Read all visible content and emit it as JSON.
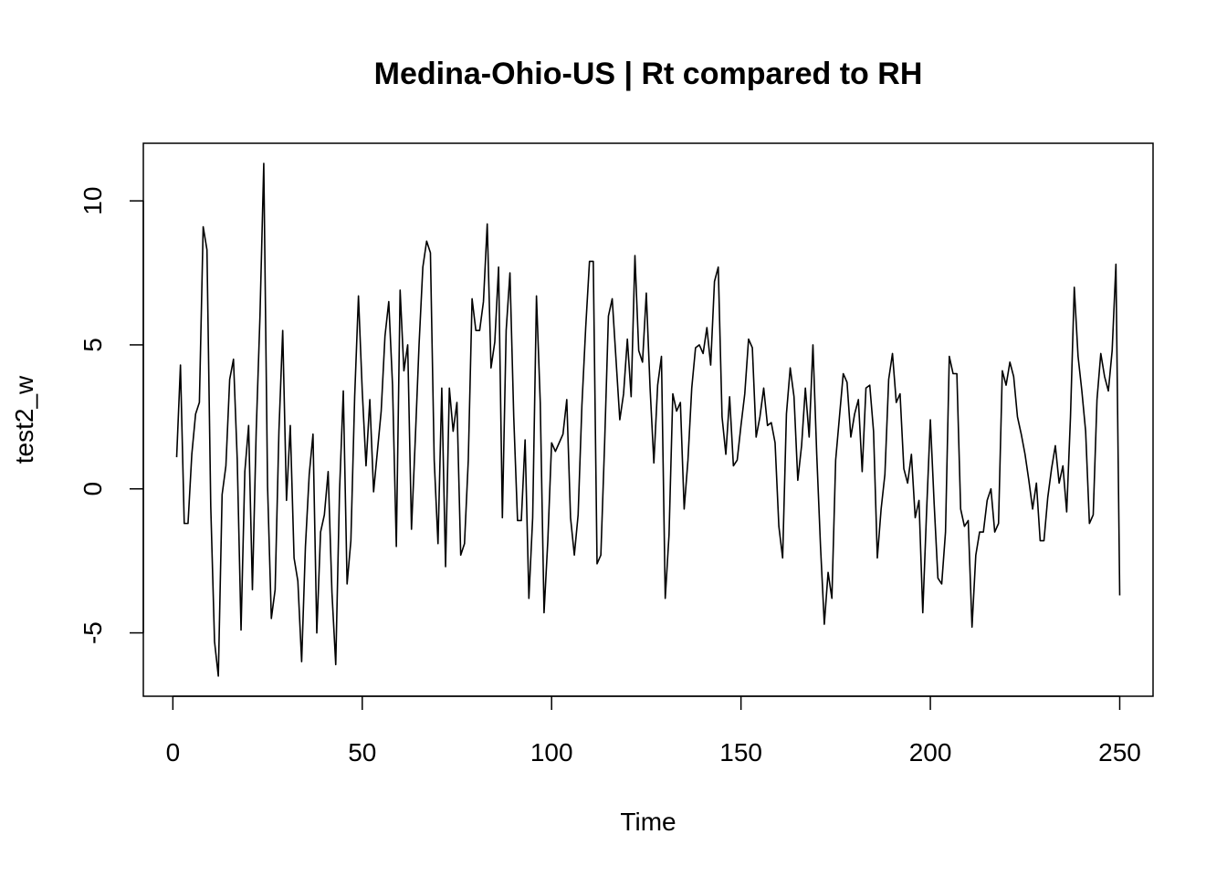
{
  "chart_data": {
    "type": "line",
    "title": "Medina-Ohio-US | Rt compared to RH",
    "xlabel": "Time",
    "ylabel": "test2_w",
    "xlim": [
      -7.8,
      258.8
    ],
    "ylim": [
      -7.2,
      12
    ],
    "x_ticks": [
      0,
      50,
      100,
      150,
      200,
      250
    ],
    "y_ticks": [
      -5,
      0,
      5,
      10
    ],
    "x_tick_labels": [
      "0",
      "50",
      "100",
      "150",
      "200",
      "250"
    ],
    "y_tick_labels": [
      "-5",
      "0",
      "5",
      "10"
    ],
    "grid": false,
    "legend": "none",
    "x_start": 1,
    "x_step": 1,
    "series": [
      {
        "values": [
          1.1,
          4.3,
          -1.2,
          -1.2,
          1.2,
          2.6,
          3.0,
          9.1,
          8.3,
          -0.6,
          -5.3,
          -6.5,
          -0.2,
          0.8,
          3.8,
          4.5,
          1.0,
          -4.9,
          0.6,
          2.2,
          -3.5,
          2.0,
          6.0,
          11.3,
          0.1,
          -4.5,
          -3.5,
          2.0,
          5.5,
          -0.4,
          2.2,
          -2.4,
          -3.2,
          -6.0,
          -2.0,
          0.5,
          1.9,
          -5.0,
          -1.5,
          -0.9,
          0.6,
          -3.6,
          -6.1,
          -0.1,
          3.4,
          -3.3,
          -1.8,
          3.2,
          6.7,
          3.4,
          0.8,
          3.1,
          -0.1,
          1.3,
          2.7,
          5.3,
          6.5,
          3.6,
          -2.0,
          6.9,
          4.1,
          5.0,
          -1.4,
          1.7,
          5.0,
          7.7,
          8.6,
          8.2,
          1.0,
          -1.9,
          3.5,
          -2.7,
          3.5,
          2.0,
          3.0,
          -2.3,
          -1.9,
          1.0,
          6.6,
          5.5,
          5.5,
          6.5,
          9.2,
          4.2,
          5.1,
          7.7,
          -1.0,
          5.5,
          7.5,
          2.5,
          -1.1,
          -1.1,
          1.7,
          -3.8,
          -1.0,
          6.7,
          3.0,
          -4.3,
          -1.8,
          1.6,
          1.3,
          1.6,
          1.9,
          3.1,
          -1.0,
          -2.3,
          -0.9,
          2.9,
          5.6,
          7.9,
          7.9,
          -2.6,
          -2.3,
          1.6,
          6.0,
          6.6,
          4.5,
          2.4,
          3.3,
          5.2,
          3.2,
          8.1,
          4.8,
          4.4,
          6.8,
          3.5,
          0.9,
          3.6,
          4.6,
          -3.8,
          -1.6,
          3.3,
          2.7,
          3.0,
          -0.7,
          1.0,
          3.5,
          4.9,
          5.0,
          4.7,
          5.6,
          4.3,
          7.2,
          7.7,
          2.5,
          1.2,
          3.2,
          0.8,
          1.0,
          2.2,
          3.3,
          5.2,
          4.9,
          1.8,
          2.5,
          3.5,
          2.2,
          2.3,
          1.6,
          -1.3,
          -2.4,
          2.6,
          4.2,
          3.2,
          0.3,
          1.5,
          3.5,
          1.8,
          5.0,
          1.2,
          -2.0,
          -4.7,
          -2.9,
          -3.8,
          1.0,
          2.5,
          4.0,
          3.7,
          1.8,
          2.6,
          3.1,
          0.6,
          3.5,
          3.6,
          2.0,
          -2.4,
          -0.7,
          0.5,
          3.8,
          4.7,
          3.0,
          3.3,
          0.7,
          0.2,
          1.2,
          -1.0,
          -0.4,
          -4.3,
          -0.8,
          2.4,
          -0.5,
          -3.1,
          -3.3,
          -1.5,
          4.6,
          4.0,
          4.0,
          -0.7,
          -1.3,
          -1.1,
          -4.8,
          -2.3,
          -1.5,
          -1.5,
          -0.4,
          0.0,
          -1.5,
          -1.2,
          4.1,
          3.6,
          4.4,
          3.9,
          2.5,
          1.9,
          1.2,
          0.3,
          -0.7,
          0.2,
          -1.8,
          -1.8,
          -0.3,
          0.7,
          1.5,
          0.2,
          0.8,
          -0.8,
          2.5,
          7.0,
          4.6,
          3.4,
          2.0,
          -1.2,
          -0.9,
          3.1,
          4.7,
          3.9,
          3.4,
          4.8,
          7.8,
          -3.7
        ]
      }
    ]
  }
}
